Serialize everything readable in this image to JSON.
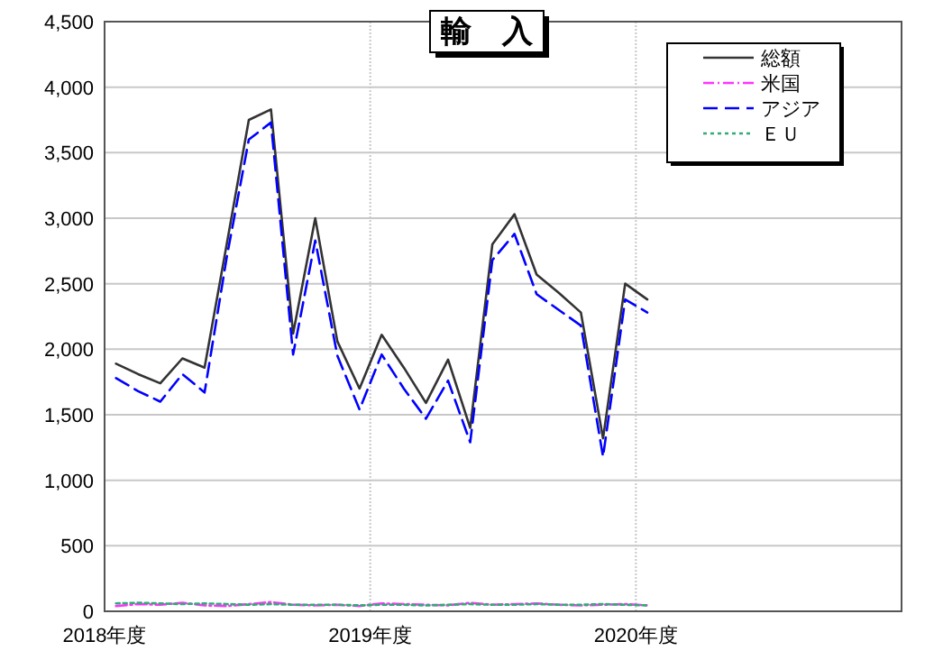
{
  "chart_data": {
    "type": "line",
    "title": "輸　入",
    "x": [
      "2018-04",
      "2018-05",
      "2018-06",
      "2018-07",
      "2018-08",
      "2018-09",
      "2018-10",
      "2018-11",
      "2018-12",
      "2019-01",
      "2019-02",
      "2019-03",
      "2019-04",
      "2019-05",
      "2019-06",
      "2019-07",
      "2019-08",
      "2019-09",
      "2019-10",
      "2019-11",
      "2019-12",
      "2020-01",
      "2020-02",
      "2020-03",
      "2020-04"
    ],
    "series": [
      {
        "name": "総額",
        "color": "#333333",
        "line_style": "solid",
        "values": [
          1890,
          1810,
          1740,
          1930,
          1860,
          2800,
          3750,
          3830,
          2120,
          3000,
          2060,
          1700,
          2110,
          1860,
          1590,
          1920,
          1400,
          2800,
          3030,
          2570,
          2430,
          2280,
          1320,
          2500,
          2380
        ]
      },
      {
        "name": "米国",
        "color": "#ff33ff",
        "line_style": "dashdot",
        "values": [
          40,
          55,
          50,
          65,
          45,
          40,
          55,
          70,
          50,
          45,
          50,
          40,
          60,
          55,
          50,
          45,
          65,
          50,
          55,
          60,
          50,
          45,
          50,
          55,
          45
        ]
      },
      {
        "name": "アジア",
        "color": "#0000ff",
        "line_style": "dashed",
        "values": [
          1780,
          1680,
          1600,
          1810,
          1670,
          2700,
          3600,
          3730,
          1960,
          2830,
          1950,
          1540,
          1960,
          1700,
          1470,
          1760,
          1290,
          2680,
          2880,
          2420,
          2300,
          2180,
          1180,
          2380,
          2280
        ]
      },
      {
        "name": "ＥＵ",
        "color": "#33aa77",
        "line_style": "dotted",
        "values": [
          60,
          65,
          60,
          55,
          60,
          55,
          50,
          55,
          50,
          50,
          50,
          45,
          50,
          50,
          45,
          50,
          55,
          50,
          50,
          55,
          50,
          50,
          55,
          50,
          45
        ]
      }
    ],
    "xlim": [
      "2018-03-16",
      "2021-03-16"
    ],
    "xticks": [
      {
        "value": "2018-03-16",
        "label": "2018年度"
      },
      {
        "value": "2019-03-16",
        "label": "2019年度"
      },
      {
        "value": "2020-03-16",
        "label": "2020年度"
      }
    ],
    "ylim": [
      0,
      4500
    ],
    "yticks": [
      0,
      500,
      {
        "value": 1000,
        "label": "1,000"
      },
      {
        "value": 1500,
        "label": "1,500"
      },
      {
        "value": 2000,
        "label": "2,000"
      },
      {
        "value": 2500,
        "label": "2,500"
      },
      {
        "value": 3000,
        "label": "3,000"
      },
      {
        "value": 3500,
        "label": "3,500"
      },
      {
        "value": 4000,
        "label": "4,000"
      },
      {
        "value": 4500,
        "label": "4,500"
      }
    ],
    "grid": true,
    "legend": "top right"
  }
}
